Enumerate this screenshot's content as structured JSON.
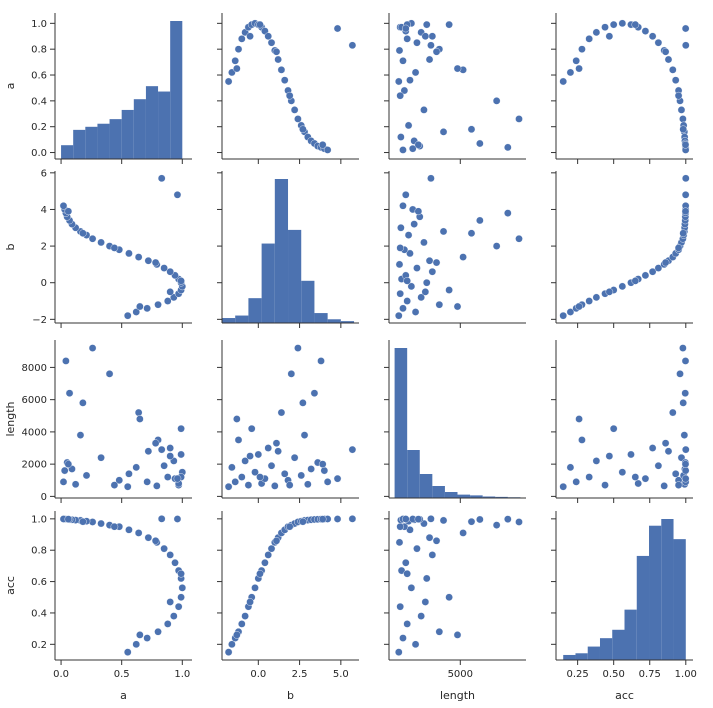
{
  "chart_data": {
    "type": "scatter",
    "variables": [
      "a",
      "b",
      "length",
      "acc"
    ],
    "style": {
      "color": "#4c72b0",
      "point_edge": "#ffffff",
      "grid": false
    },
    "axes": {
      "a": {
        "label": "a",
        "range": [
          -0.05,
          1.08
        ],
        "ticks": [
          0.0,
          0.2,
          0.4,
          0.6,
          0.8,
          1.0
        ],
        "tick_labels": [
          "0.0",
          "0.2",
          "0.4",
          "0.6",
          "0.8",
          "1.0"
        ],
        "x_ticks": [
          0.0,
          0.5,
          1.0
        ],
        "x_tick_labels": [
          "0.0",
          "0.5",
          "1.0"
        ]
      },
      "b": {
        "label": "b",
        "range": [
          -2.2,
          6.1
        ],
        "ticks": [
          -2,
          0,
          2,
          4,
          6
        ],
        "tick_labels": [
          "−2",
          "0",
          "2",
          "4",
          "6"
        ],
        "x_ticks": [
          0.0,
          2.5,
          5.0
        ],
        "x_tick_labels": [
          "0.0",
          "2.5",
          "5.0"
        ]
      },
      "length": {
        "label": "length",
        "range": [
          -100,
          9700
        ],
        "ticks": [
          0,
          2000,
          4000,
          6000,
          8000
        ],
        "tick_labels": [
          "0",
          "2000",
          "4000",
          "6000",
          "8000"
        ],
        "x_ticks": [
          5000
        ],
        "x_tick_labels": [
          "5000"
        ]
      },
      "acc": {
        "label": "acc",
        "range": [
          0.1,
          1.05
        ],
        "ticks": [
          0.2,
          0.4,
          0.6,
          0.8,
          1.0
        ],
        "tick_labels": [
          "0.2",
          "0.4",
          "0.6",
          "0.8",
          "1.0"
        ],
        "x_ticks": [
          0.25,
          0.5,
          0.75,
          1.0
        ],
        "x_tick_labels": [
          "0.25",
          "0.50",
          "0.75",
          "1.00"
        ]
      }
    },
    "histograms": {
      "a": {
        "bins": [
          0.0,
          0.1,
          0.2,
          0.3,
          0.4,
          0.5,
          0.6,
          0.7,
          0.8,
          0.9,
          1.0
        ],
        "counts": [
          18,
          38,
          42,
          46,
          52,
          64,
          78,
          95,
          88,
          180
        ]
      },
      "b": {
        "bins": [
          -2.2,
          -1.4,
          -0.6,
          0.2,
          1.0,
          1.8,
          2.6,
          3.4,
          4.2,
          5.0,
          5.8
        ],
        "counts": [
          8,
          12,
          40,
          128,
          232,
          150,
          68,
          16,
          6,
          3
        ]
      },
      "length": {
        "bins": [
          300,
          1200,
          2100,
          3000,
          3900,
          4800,
          5700,
          6600,
          7500,
          8400,
          9300
        ],
        "counts": [
          400,
          128,
          64,
          32,
          16,
          9,
          7,
          4,
          3,
          2
        ]
      },
      "acc": {
        "bins": [
          0.15,
          0.235,
          0.32,
          0.405,
          0.49,
          0.575,
          0.66,
          0.745,
          0.83,
          0.915,
          1.0
        ],
        "counts": [
          3,
          4,
          8,
          13,
          18,
          30,
          62,
          80,
          84,
          72
        ]
      }
    },
    "scatter_points": {
      "a": [
        0.55,
        0.62,
        0.71,
        0.8,
        0.88,
        0.93,
        0.97,
        0.99,
        1.0,
        0.99,
        0.97,
        0.94,
        0.9,
        0.85,
        0.79,
        0.72,
        0.64,
        0.56,
        0.48,
        0.4,
        0.33,
        0.26,
        0.21,
        0.16,
        0.12,
        0.09,
        0.07,
        0.05,
        0.04,
        0.03,
        0.02,
        0.65,
        0.9,
        0.99,
        0.78,
        0.44,
        0.18,
        0.06,
        0.96,
        0.83
      ],
      "b": [
        -1.8,
        -1.6,
        -1.4,
        -1.2,
        -1.0,
        -0.8,
        -0.6,
        -0.4,
        -0.2,
        0.0,
        0.2,
        0.4,
        0.6,
        0.8,
        1.0,
        1.2,
        1.4,
        1.6,
        1.8,
        2.0,
        2.2,
        2.4,
        2.6,
        2.8,
        3.0,
        3.2,
        3.4,
        3.6,
        3.8,
        4.0,
        4.2,
        -1.3,
        -0.5,
        0.1,
        1.1,
        1.9,
        2.7,
        3.9,
        4.8,
        5.7
      ],
      "length": [
        600,
        1800,
        900,
        3500,
        1200,
        2200,
        700,
        4200,
        1500,
        2600,
        800,
        1100,
        3000,
        1900,
        650,
        2800,
        5200,
        1400,
        1000,
        7600,
        2400,
        9200,
        1300,
        3800,
        750,
        1700,
        6400,
        2100,
        8400,
        1600,
        900,
        4800,
        2500,
        1200,
        3300,
        700,
        5800,
        2000,
        1100,
        2900
      ],
      "acc": [
        0.15,
        0.2,
        0.24,
        0.28,
        0.33,
        0.38,
        0.44,
        0.5,
        0.56,
        0.62,
        0.67,
        0.72,
        0.77,
        0.81,
        0.85,
        0.88,
        0.91,
        0.93,
        0.95,
        0.96,
        0.97,
        0.98,
        0.985,
        0.99,
        0.992,
        0.994,
        0.996,
        0.997,
        0.998,
        0.999,
        0.999,
        0.26,
        0.47,
        0.65,
        0.86,
        0.95,
        0.982,
        0.998,
        0.999,
        1.0
      ]
    }
  }
}
